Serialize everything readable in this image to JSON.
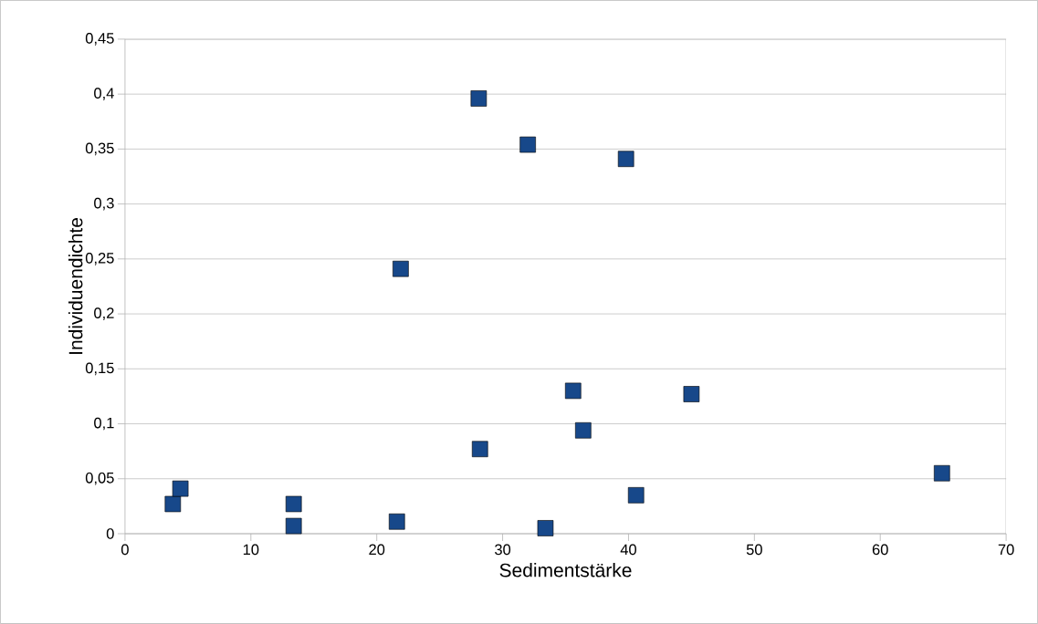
{
  "chart_data": {
    "type": "scatter",
    "xlabel": "Sedimentstärke",
    "ylabel": "Individuendichte",
    "x": [
      3.8,
      4.4,
      13.4,
      13.4,
      21.6,
      21.9,
      28.1,
      28.2,
      32.0,
      33.4,
      35.6,
      36.4,
      39.8,
      40.6,
      45.0,
      64.9
    ],
    "values": [
      0.027,
      0.041,
      0.027,
      0.007,
      0.011,
      0.241,
      0.396,
      0.077,
      0.354,
      0.005,
      0.13,
      0.094,
      0.341,
      0.035,
      0.127,
      0.055
    ],
    "color": "#17488a",
    "marker": "square",
    "grid": "y",
    "xlim": [
      0,
      70
    ],
    "ylim": [
      0,
      0.45
    ],
    "xticks": [
      0,
      10,
      20,
      30,
      40,
      50,
      60,
      70
    ],
    "yticks": [
      0,
      {
        "value": 0.05,
        "label": "0,05"
      },
      {
        "value": 0.1,
        "label": "0,1"
      },
      {
        "value": 0.15,
        "label": "0,15"
      },
      {
        "value": 0.2,
        "label": "0,2"
      },
      {
        "value": 0.25,
        "label": "0,25"
      },
      {
        "value": 0.3,
        "label": "0,3"
      },
      {
        "value": 0.35,
        "label": "0,35"
      },
      {
        "value": 0.4,
        "label": "0,4"
      },
      {
        "value": 0.45,
        "label": "0,45"
      }
    ]
  }
}
